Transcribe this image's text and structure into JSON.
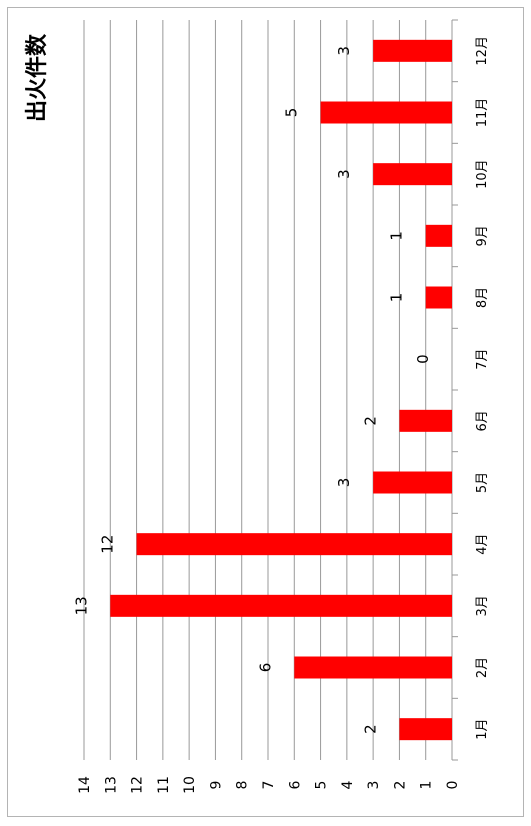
{
  "chart_data": {
    "type": "bar",
    "title": "出火件数",
    "categories": [
      "1月",
      "2月",
      "3月",
      "4月",
      "5月",
      "6月",
      "7月",
      "8月",
      "9月",
      "10月",
      "11月",
      "12月"
    ],
    "values": [
      2,
      6,
      13,
      12,
      3,
      2,
      0,
      1,
      1,
      3,
      5,
      3
    ],
    "ylim": [
      0,
      14
    ],
    "yticks": [
      "0",
      "1",
      "2",
      "3",
      "4",
      "5",
      "6",
      "7",
      "8",
      "9",
      "10",
      "11",
      "12",
      "13",
      "14"
    ],
    "grid": true,
    "colors": {
      "bar": "#ff0000",
      "grid": "#999999",
      "text": "#000000"
    }
  }
}
